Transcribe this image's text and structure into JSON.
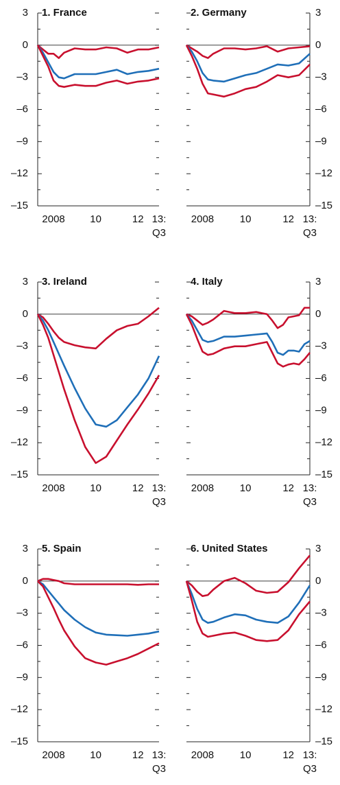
{
  "chart_data": [
    {
      "type": "line",
      "title": "1. France",
      "x": [
        2007.75,
        2008,
        2008.25,
        2008.5,
        2008.75,
        2009,
        2009.5,
        2010,
        2010.5,
        2011,
        2011.5,
        2012,
        2012.5,
        2013,
        2013.5
      ],
      "series": [
        {
          "color": "#c8102e",
          "values": [
            0,
            -0.4,
            -0.8,
            -0.8,
            -1.2,
            -0.7,
            -0.3,
            -0.4,
            -0.4,
            -0.2,
            -0.3,
            -0.7,
            -0.4,
            -0.4,
            -0.2
          ]
        },
        {
          "color": "#1f6fb8",
          "values": [
            0,
            -0.7,
            -1.6,
            -2.5,
            -3.0,
            -3.1,
            -2.7,
            -2.7,
            -2.7,
            -2.5,
            -2.3,
            -2.7,
            -2.5,
            -2.4,
            -2.2
          ]
        },
        {
          "color": "#c8102e",
          "values": [
            0,
            -1.0,
            -2.0,
            -3.3,
            -3.8,
            -3.9,
            -3.7,
            -3.8,
            -3.8,
            -3.5,
            -3.3,
            -3.6,
            -3.4,
            -3.3,
            -3.1
          ]
        }
      ],
      "xlim": [
        2007.75,
        2013.5
      ],
      "xticks": [
        {
          "value": 2008.5,
          "label": "2008"
        },
        {
          "value": 2010.5,
          "label": "10"
        },
        {
          "value": 2012.5,
          "label": "12"
        },
        {
          "value": 2013.5,
          "label": "13:\nQ3"
        }
      ],
      "ylim": [
        -15,
        3
      ],
      "yticks": [
        3,
        0,
        {
          "value": -3,
          "label": "–3"
        },
        {
          "value": -6,
          "label": "–6"
        },
        {
          "value": -9,
          "label": "–9"
        },
        {
          "value": -12,
          "label": "–12"
        },
        {
          "value": -15,
          "label": "–15"
        }
      ],
      "yminorticks": [
        1.5,
        -1.5,
        -4.5,
        -7.5,
        -10.5,
        -13.5
      ]
    },
    {
      "type": "line",
      "title": "2. Germany",
      "x": [
        2007.75,
        2008,
        2008.25,
        2008.5,
        2008.75,
        2009,
        2009.5,
        2010,
        2010.5,
        2011,
        2011.5,
        2012,
        2012.5,
        2013,
        2013.5
      ],
      "series": [
        {
          "color": "#c8102e",
          "values": [
            0,
            -0.3,
            -0.6,
            -1.0,
            -1.2,
            -0.8,
            -0.3,
            -0.3,
            -0.4,
            -0.3,
            -0.1,
            -0.6,
            -0.3,
            -0.2,
            -0.1
          ]
        },
        {
          "color": "#1f6fb8",
          "values": [
            0,
            -0.6,
            -1.5,
            -2.6,
            -3.2,
            -3.3,
            -3.4,
            -3.1,
            -2.8,
            -2.6,
            -2.2,
            -1.8,
            -1.9,
            -1.7,
            -0.8
          ]
        },
        {
          "color": "#c8102e",
          "values": [
            0,
            -1.0,
            -2.2,
            -3.6,
            -4.5,
            -4.6,
            -4.8,
            -4.5,
            -4.1,
            -3.9,
            -3.4,
            -2.8,
            -3.0,
            -2.8,
            -1.8
          ]
        }
      ],
      "xlim": [
        2007.75,
        2013.5
      ],
      "xticks": [
        {
          "value": 2008.5,
          "label": "2008"
        },
        {
          "value": 2010.5,
          "label": "10"
        },
        {
          "value": 2012.5,
          "label": "12"
        },
        {
          "value": 2013.5,
          "label": "13:\nQ3"
        }
      ],
      "ylim": [
        -15,
        3
      ],
      "yticks": [
        3,
        0,
        {
          "value": -3,
          "label": "–3"
        },
        {
          "value": -6,
          "label": "–6"
        },
        {
          "value": -9,
          "label": "–9"
        },
        {
          "value": -12,
          "label": "–12"
        },
        {
          "value": -15,
          "label": "–15"
        }
      ],
      "yminorticks": [
        1.5,
        -1.5,
        -4.5,
        -7.5,
        -10.5,
        -13.5
      ]
    },
    {
      "type": "line",
      "title": "3. Ireland",
      "x": [
        2007.75,
        2008,
        2008.25,
        2008.5,
        2008.75,
        2009,
        2009.5,
        2010,
        2010.5,
        2011,
        2011.5,
        2012,
        2012.5,
        2013,
        2013.5
      ],
      "series": [
        {
          "color": "#c8102e",
          "values": [
            0,
            -0.3,
            -0.9,
            -1.6,
            -2.2,
            -2.6,
            -2.9,
            -3.1,
            -3.2,
            -2.3,
            -1.5,
            -1.1,
            -0.9,
            -0.2,
            0.6
          ]
        },
        {
          "color": "#1f6fb8",
          "values": [
            0,
            -0.6,
            -1.5,
            -2.6,
            -3.7,
            -4.8,
            -6.9,
            -8.8,
            -10.3,
            -10.5,
            -9.9,
            -8.7,
            -7.5,
            -6.0,
            -3.9
          ]
        },
        {
          "color": "#c8102e",
          "values": [
            0,
            -1.0,
            -2.2,
            -3.8,
            -5.4,
            -7.0,
            -9.9,
            -12.4,
            -13.9,
            -13.3,
            -11.8,
            -10.3,
            -8.9,
            -7.4,
            -5.7
          ]
        }
      ],
      "xlim": [
        2007.75,
        2013.5
      ],
      "xticks": [
        {
          "value": 2008.5,
          "label": "2008"
        },
        {
          "value": 2010.5,
          "label": "10"
        },
        {
          "value": 2012.5,
          "label": "12"
        },
        {
          "value": 2013.5,
          "label": "13:\nQ3"
        }
      ],
      "ylim": [
        -15,
        3
      ],
      "yticks": [
        3,
        0,
        {
          "value": -3,
          "label": "–3"
        },
        {
          "value": -6,
          "label": "–6"
        },
        {
          "value": -9,
          "label": "–9"
        },
        {
          "value": -12,
          "label": "–12"
        },
        {
          "value": -15,
          "label": "–15"
        }
      ],
      "yminorticks": [
        1.5,
        -1.5,
        -4.5,
        -7.5,
        -10.5,
        -13.5
      ]
    },
    {
      "type": "line",
      "title": "4. Italy",
      "x": [
        2007.75,
        2008,
        2008.25,
        2008.5,
        2008.75,
        2009,
        2009.5,
        2010,
        2010.5,
        2011,
        2011.5,
        2011.75,
        2012,
        2012.25,
        2012.5,
        2012.75,
        2013,
        2013.25,
        2013.5
      ],
      "series": [
        {
          "color": "#c8102e",
          "values": [
            0,
            -0.2,
            -0.6,
            -1.0,
            -0.8,
            -0.5,
            0.3,
            0.1,
            0.1,
            0.2,
            0.0,
            -0.6,
            -1.3,
            -1.0,
            -0.3,
            -0.2,
            -0.1,
            0.6,
            0.6
          ]
        },
        {
          "color": "#1f6fb8",
          "values": [
            0,
            -0.6,
            -1.5,
            -2.4,
            -2.6,
            -2.5,
            -2.1,
            -2.1,
            -2.0,
            -1.9,
            -1.8,
            -2.6,
            -3.6,
            -3.8,
            -3.4,
            -3.4,
            -3.5,
            -2.8,
            -2.5
          ]
        },
        {
          "color": "#c8102e",
          "values": [
            0,
            -1.0,
            -2.3,
            -3.5,
            -3.8,
            -3.7,
            -3.2,
            -3.0,
            -3.0,
            -2.8,
            -2.6,
            -3.6,
            -4.6,
            -4.9,
            -4.7,
            -4.6,
            -4.7,
            -4.2,
            -3.6
          ]
        }
      ],
      "xlim": [
        2007.75,
        2013.5
      ],
      "xticks": [
        {
          "value": 2008.5,
          "label": "2008"
        },
        {
          "value": 2010.5,
          "label": "10"
        },
        {
          "value": 2012.5,
          "label": "12"
        },
        {
          "value": 2013.5,
          "label": "13:\nQ3"
        }
      ],
      "ylim": [
        -15,
        3
      ],
      "yticks": [
        3,
        0,
        {
          "value": -3,
          "label": "–3"
        },
        {
          "value": -6,
          "label": "–6"
        },
        {
          "value": -9,
          "label": "–9"
        },
        {
          "value": -12,
          "label": "–12"
        },
        {
          "value": -15,
          "label": "–15"
        }
      ],
      "yminorticks": [
        1.5,
        -1.5,
        -4.5,
        -7.5,
        -10.5,
        -13.5
      ]
    },
    {
      "type": "line",
      "title": "5. Spain",
      "x": [
        2007.75,
        2008,
        2008.25,
        2008.5,
        2008.75,
        2009,
        2009.5,
        2010,
        2010.5,
        2011,
        2011.5,
        2012,
        2012.5,
        2013,
        2013.5
      ],
      "series": [
        {
          "color": "#c8102e",
          "values": [
            0,
            0.2,
            0.2,
            0.1,
            0,
            -0.2,
            -0.3,
            -0.3,
            -0.3,
            -0.3,
            -0.3,
            -0.3,
            -0.35,
            -0.3,
            -0.3
          ]
        },
        {
          "color": "#1f6fb8",
          "values": [
            0,
            -0.3,
            -0.9,
            -1.5,
            -2.1,
            -2.7,
            -3.6,
            -4.3,
            -4.8,
            -5.0,
            -5.05,
            -5.1,
            -5.0,
            -4.9,
            -4.7
          ]
        },
        {
          "color": "#c8102e",
          "values": [
            0,
            -0.5,
            -1.5,
            -2.5,
            -3.6,
            -4.6,
            -6.1,
            -7.2,
            -7.6,
            -7.8,
            -7.5,
            -7.2,
            -6.8,
            -6.3,
            -5.8
          ]
        }
      ],
      "xlim": [
        2007.75,
        2013.5
      ],
      "xticks": [
        {
          "value": 2008.5,
          "label": "2008"
        },
        {
          "value": 2010.5,
          "label": "10"
        },
        {
          "value": 2012.5,
          "label": "12"
        },
        {
          "value": 2013.5,
          "label": "13:\nQ3"
        }
      ],
      "ylim": [
        -15,
        3
      ],
      "yticks": [
        3,
        0,
        {
          "value": -3,
          "label": "–3"
        },
        {
          "value": -6,
          "label": "–6"
        },
        {
          "value": -9,
          "label": "–9"
        },
        {
          "value": -12,
          "label": "–12"
        },
        {
          "value": -15,
          "label": "–15"
        }
      ],
      "yminorticks": [
        1.5,
        -1.5,
        -4.5,
        -7.5,
        -10.5,
        -13.5
      ]
    },
    {
      "type": "line",
      "title": "6. United States",
      "x": [
        2007.75,
        2008,
        2008.25,
        2008.5,
        2008.75,
        2009,
        2009.5,
        2010,
        2010.5,
        2011,
        2011.5,
        2012,
        2012.5,
        2013,
        2013.5
      ],
      "series": [
        {
          "color": "#c8102e",
          "values": [
            0,
            -0.4,
            -1.0,
            -1.4,
            -1.3,
            -0.8,
            0.0,
            0.3,
            -0.2,
            -0.9,
            -1.1,
            -1.0,
            -0.1,
            1.2,
            2.4
          ]
        },
        {
          "color": "#1f6fb8",
          "values": [
            0,
            -1.2,
            -2.6,
            -3.6,
            -3.9,
            -3.8,
            -3.4,
            -3.1,
            -3.2,
            -3.6,
            -3.8,
            -3.9,
            -3.3,
            -2.0,
            -0.4
          ]
        },
        {
          "color": "#c8102e",
          "values": [
            0,
            -1.8,
            -3.8,
            -4.9,
            -5.2,
            -5.1,
            -4.9,
            -4.8,
            -5.1,
            -5.5,
            -5.6,
            -5.5,
            -4.6,
            -3.1,
            -1.9
          ]
        }
      ],
      "xlim": [
        2007.75,
        2013.5
      ],
      "xticks": [
        {
          "value": 2008.5,
          "label": "2008"
        },
        {
          "value": 2010.5,
          "label": "10"
        },
        {
          "value": 2012.5,
          "label": "12"
        },
        {
          "value": 2013.5,
          "label": "13:\nQ3"
        }
      ],
      "ylim": [
        -15,
        3
      ],
      "yticks": [
        3,
        0,
        {
          "value": -3,
          "label": "–3"
        },
        {
          "value": -6,
          "label": "–6"
        },
        {
          "value": -9,
          "label": "–9"
        },
        {
          "value": -12,
          "label": "–12"
        },
        {
          "value": -15,
          "label": "–15"
        }
      ],
      "yminorticks": [
        1.5,
        -1.5,
        -4.5,
        -7.5,
        -10.5,
        -13.5
      ]
    }
  ]
}
